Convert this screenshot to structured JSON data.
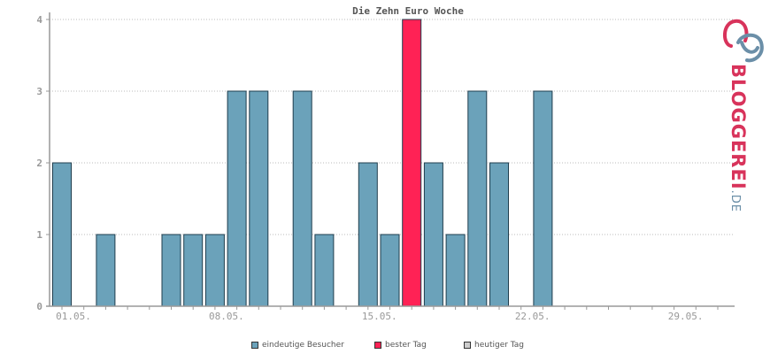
{
  "chart_data": {
    "type": "bar",
    "title": "Die  Zehn Euro Woche",
    "x_tick_labels": [
      "01.05.",
      "08.05.",
      "15.05.",
      "22.05.",
      "29.05."
    ],
    "x_tick_days": [
      1,
      8,
      15,
      22,
      29
    ],
    "days": [
      1,
      2,
      3,
      4,
      5,
      6,
      7,
      8,
      9,
      10,
      11,
      12,
      13,
      14,
      15,
      16,
      17,
      18,
      19,
      20,
      21,
      22,
      23,
      24,
      25,
      26,
      27,
      28,
      29,
      30,
      31
    ],
    "values": [
      2,
      0,
      1,
      0,
      0,
      1,
      1,
      1,
      3,
      3,
      0,
      3,
      1,
      0,
      2,
      1,
      4,
      2,
      1,
      3,
      2,
      0,
      3,
      0,
      0,
      0,
      0,
      0,
      0,
      0,
      0
    ],
    "best_day": 17,
    "ylim": [
      0,
      4
    ],
    "yticks": [
      0,
      1,
      2,
      3,
      4
    ],
    "grid": true,
    "legend_position": "bottom",
    "colors": {
      "visitors": "#6ba2ba",
      "best": "#ff2255",
      "today": "#cccccc",
      "bar_border": "#1f3d4d"
    }
  },
  "legend": {
    "items": [
      {
        "label": "eindeutige Besucher",
        "color": "#6ba2ba"
      },
      {
        "label": "bester Tag",
        "color": "#ff2255"
      },
      {
        "label": "heutiger Tag",
        "color": "#cccccc"
      }
    ]
  },
  "logo": {
    "name": "BLOGGEREI",
    "tld": ".DE"
  }
}
